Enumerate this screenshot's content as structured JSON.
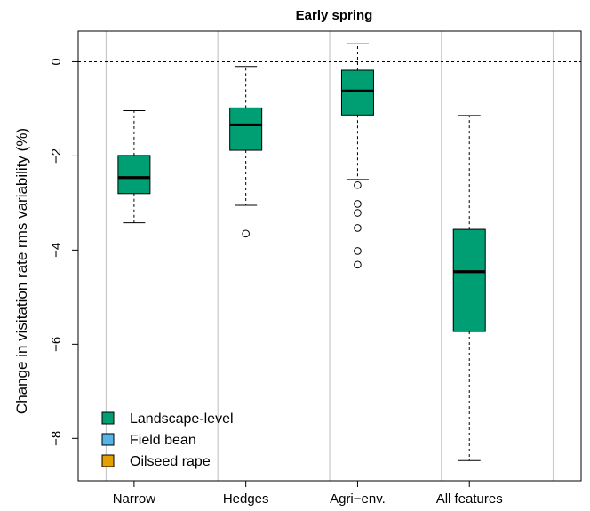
{
  "chart_data": {
    "type": "box",
    "title": "Early spring",
    "ylabel": "Change in visitation rate rms variability (%)",
    "xlabel": "",
    "categories": [
      "Narrow",
      "Hedges",
      "Agri−env.",
      "All features"
    ],
    "ylim": [
      -8.9,
      0.65
    ],
    "yticks": [
      0,
      -2,
      -4,
      -6,
      -8
    ],
    "ytick_labels": [
      "0",
      "−2",
      "−4",
      "−6",
      "−8"
    ],
    "reference_line": 0,
    "grid": "vertical",
    "series": [
      {
        "name": "Landscape-level",
        "color": "#009E73",
        "boxes": [
          {
            "category": "Narrow",
            "whisker_low": -3.42,
            "q1": -2.8,
            "median": -2.46,
            "q3": -1.99,
            "whisker_high": -1.04,
            "outliers": []
          },
          {
            "category": "Hedges",
            "whisker_low": -3.05,
            "q1": -1.88,
            "median": -1.34,
            "q3": -0.98,
            "whisker_high": -0.1,
            "outliers": [
              -3.65
            ]
          },
          {
            "category": "Agri−env.",
            "whisker_low": -2.5,
            "q1": -1.13,
            "median": -0.62,
            "q3": -0.18,
            "whisker_high": 0.38,
            "outliers": [
              -2.62,
              -3.02,
              -3.21,
              -3.53,
              -4.02,
              -4.31
            ]
          },
          {
            "category": "All features",
            "whisker_low": -8.47,
            "q1": -5.73,
            "median": -4.46,
            "q3": -3.56,
            "whisker_high": -1.14,
            "outliers": []
          }
        ]
      },
      {
        "name": "Field bean",
        "color": "#56B4E9",
        "boxes": []
      },
      {
        "name": "Oilseed rape",
        "color": "#E69F00",
        "boxes": []
      }
    ],
    "legend": {
      "position": "bottom-left",
      "entries": [
        {
          "label": "Landscape-level",
          "color": "#009E73"
        },
        {
          "label": "Field bean",
          "color": "#56B4E9"
        },
        {
          "label": "Oilseed rape",
          "color": "#E69F00"
        }
      ]
    }
  }
}
